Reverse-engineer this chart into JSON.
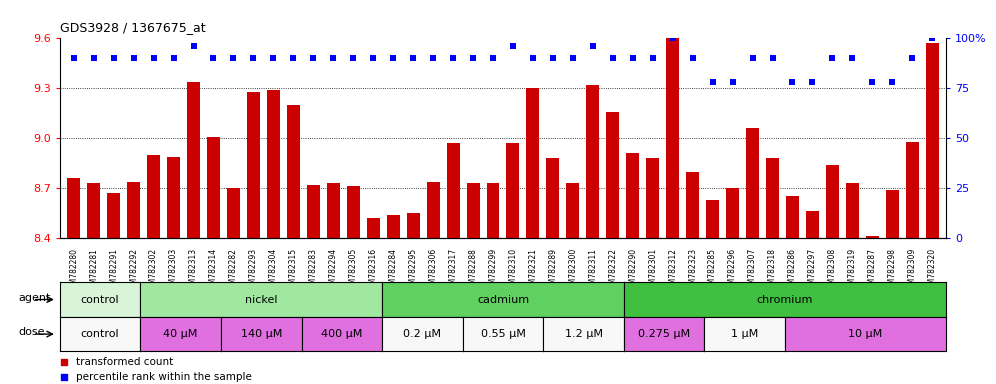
{
  "title": "GDS3928 / 1367675_at",
  "samples": [
    "GSM782280",
    "GSM782281",
    "GSM782291",
    "GSM782292",
    "GSM782302",
    "GSM782303",
    "GSM782313",
    "GSM782314",
    "GSM782282",
    "GSM782293",
    "GSM782304",
    "GSM782315",
    "GSM782283",
    "GSM782294",
    "GSM782305",
    "GSM782316",
    "GSM782284",
    "GSM782295",
    "GSM782306",
    "GSM782317",
    "GSM782288",
    "GSM782299",
    "GSM782310",
    "GSM782321",
    "GSM782289",
    "GSM782300",
    "GSM782311",
    "GSM782322",
    "GSM782290",
    "GSM782301",
    "GSM782312",
    "GSM782323",
    "GSM782285",
    "GSM782296",
    "GSM782307",
    "GSM782318",
    "GSM782286",
    "GSM782297",
    "GSM782308",
    "GSM782319",
    "GSM782287",
    "GSM782298",
    "GSM782309",
    "GSM782320"
  ],
  "bar_values": [
    8.76,
    8.73,
    8.67,
    8.74,
    8.9,
    8.89,
    9.34,
    9.01,
    8.7,
    9.28,
    9.29,
    9.2,
    8.72,
    8.73,
    8.71,
    8.52,
    8.54,
    8.55,
    8.74,
    8.97,
    8.73,
    8.73,
    8.97,
    9.3,
    8.88,
    8.73,
    9.32,
    9.16,
    8.91,
    8.88,
    9.6,
    8.8,
    8.63,
    8.7,
    9.06,
    8.88,
    8.65,
    8.56,
    8.84,
    8.73,
    8.41,
    8.69,
    8.98,
    9.57
  ],
  "percentile_values": [
    90,
    90,
    90,
    90,
    90,
    90,
    96,
    90,
    90,
    90,
    90,
    90,
    90,
    90,
    90,
    90,
    90,
    90,
    90,
    90,
    90,
    90,
    96,
    90,
    90,
    90,
    96,
    90,
    90,
    90,
    100,
    90,
    78,
    78,
    90,
    90,
    78,
    78,
    90,
    90,
    78,
    78,
    90,
    100
  ],
  "ylim_left": [
    8.4,
    9.6
  ],
  "ylim_right": [
    0,
    100
  ],
  "yticks_left": [
    8.4,
    8.7,
    9.0,
    9.3,
    9.6
  ],
  "yticks_right": [
    0,
    25,
    50,
    75,
    100
  ],
  "bar_color": "#cc0000",
  "dot_color": "#0000ff",
  "agents": [
    {
      "label": "control",
      "start": 0,
      "end": 3,
      "color": "#d8f5d8"
    },
    {
      "label": "nickel",
      "start": 4,
      "end": 15,
      "color": "#a0e8a0"
    },
    {
      "label": "cadmium",
      "start": 16,
      "end": 27,
      "color": "#60d060"
    },
    {
      "label": "chromium",
      "start": 28,
      "end": 43,
      "color": "#40c040"
    }
  ],
  "doses": [
    {
      "label": "control",
      "start": 0,
      "end": 3,
      "color": "#f8f8f8"
    },
    {
      "label": "40 μM",
      "start": 4,
      "end": 7,
      "color": "#e070e0"
    },
    {
      "label": "140 μM",
      "start": 8,
      "end": 11,
      "color": "#e070e0"
    },
    {
      "label": "400 μM",
      "start": 12,
      "end": 15,
      "color": "#e070e0"
    },
    {
      "label": "0.2 μM",
      "start": 16,
      "end": 19,
      "color": "#f8f8f8"
    },
    {
      "label": "0.55 μM",
      "start": 20,
      "end": 23,
      "color": "#f8f8f8"
    },
    {
      "label": "1.2 μM",
      "start": 24,
      "end": 27,
      "color": "#f8f8f8"
    },
    {
      "label": "0.275 μM",
      "start": 28,
      "end": 31,
      "color": "#e070e0"
    },
    {
      "label": "1 μM",
      "start": 32,
      "end": 35,
      "color": "#f8f8f8"
    },
    {
      "label": "10 μM",
      "start": 36,
      "end": 43,
      "color": "#e070e0"
    }
  ],
  "legend_items": [
    {
      "color": "#cc0000",
      "label": "transformed count"
    },
    {
      "color": "#0000ff",
      "label": "percentile rank within the sample"
    }
  ],
  "bg_color": "#ffffff",
  "plot_bg": "#ffffff"
}
